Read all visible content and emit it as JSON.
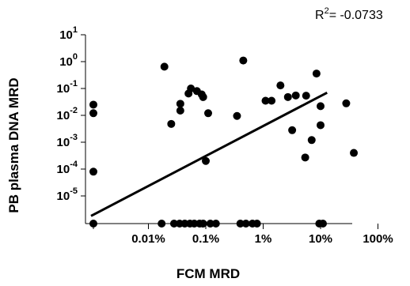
{
  "chart_data": {
    "type": "scatter",
    "annotation": {
      "prefix": "R",
      "sup": "2",
      "value": "= -0.0733"
    },
    "xlabel": "FCM MRD",
    "ylabel": "PB plasma DNA MRD",
    "x_scale": "log",
    "y_scale": "log",
    "xlim": [
      1e-05,
      1
    ],
    "ylim": [
      1e-06,
      10
    ],
    "x_ticks": [
      {
        "value": 0.0001,
        "label": "0.01%"
      },
      {
        "value": 0.001,
        "label": "0.1%"
      },
      {
        "value": 0.01,
        "label": "1%"
      },
      {
        "value": 0.1,
        "label": "10%"
      },
      {
        "value": 1,
        "label": "100%"
      }
    ],
    "y_ticks": [
      {
        "value": 10,
        "base": "10",
        "exp": "1"
      },
      {
        "value": 1,
        "base": "10",
        "exp": "0"
      },
      {
        "value": 0.1,
        "base": "10",
        "exp": "-1"
      },
      {
        "value": 0.01,
        "base": "10",
        "exp": "-2"
      },
      {
        "value": 0.001,
        "base": "10",
        "exp": "-3"
      },
      {
        "value": 0.0001,
        "base": "10",
        "exp": "-4"
      },
      {
        "value": 1e-05,
        "base": "10",
        "exp": "-5"
      }
    ],
    "zero_value": 0,
    "points": [
      {
        "x": 0,
        "y": 0.025
      },
      {
        "x": 0,
        "y": 0.012
      },
      {
        "x": 0,
        "y": 8e-05
      },
      {
        "x": 0,
        "y": 0
      },
      {
        "x": 0.00019,
        "y": 0.65
      },
      {
        "x": 0.00025,
        "y": 0.0048
      },
      {
        "x": 0.00036,
        "y": 0.027
      },
      {
        "x": 0.00036,
        "y": 0.015
      },
      {
        "x": 0.0005,
        "y": 0.065
      },
      {
        "x": 0.00055,
        "y": 0.1
      },
      {
        "x": 0.0007,
        "y": 0.08
      },
      {
        "x": 0.00085,
        "y": 0.06
      },
      {
        "x": 0.0009,
        "y": 0.048
      },
      {
        "x": 0.001,
        "y": 0.0002
      },
      {
        "x": 0.0011,
        "y": 0.012
      },
      {
        "x": 0.0035,
        "y": 0.0095
      },
      {
        "x": 0.0045,
        "y": 1.1
      },
      {
        "x": 0.011,
        "y": 0.035
      },
      {
        "x": 0.014,
        "y": 0.035
      },
      {
        "x": 0.02,
        "y": 0.13
      },
      {
        "x": 0.027,
        "y": 0.048
      },
      {
        "x": 0.032,
        "y": 0.0028
      },
      {
        "x": 0.037,
        "y": 0.055
      },
      {
        "x": 0.054,
        "y": 0.00027
      },
      {
        "x": 0.056,
        "y": 0.054
      },
      {
        "x": 0.07,
        "y": 0.0012
      },
      {
        "x": 0.085,
        "y": 0.36
      },
      {
        "x": 0.1,
        "y": 0.022
      },
      {
        "x": 0.1,
        "y": 0.0043
      },
      {
        "x": 0.28,
        "y": 0.028
      },
      {
        "x": 0.38,
        "y": 0.0004
      },
      {
        "x": 0.00017,
        "y": 0
      },
      {
        "x": 0.00028,
        "y": 0
      },
      {
        "x": 0.00035,
        "y": 0
      },
      {
        "x": 0.00043,
        "y": 0
      },
      {
        "x": 0.00053,
        "y": 0
      },
      {
        "x": 0.00063,
        "y": 0
      },
      {
        "x": 0.00078,
        "y": 0
      },
      {
        "x": 0.0009,
        "y": 0
      },
      {
        "x": 0.0012,
        "y": 0
      },
      {
        "x": 0.0015,
        "y": 0
      },
      {
        "x": 0.004,
        "y": 0
      },
      {
        "x": 0.005,
        "y": 0
      },
      {
        "x": 0.0065,
        "y": 0
      },
      {
        "x": 0.0078,
        "y": 0
      },
      {
        "x": 0.095,
        "y": 0
      },
      {
        "x": 0.11,
        "y": 0
      }
    ],
    "fit_line": [
      {
        "x": 1e-05,
        "y": 1.8e-06
      },
      {
        "x": 0.13,
        "y": 0.07
      }
    ]
  }
}
